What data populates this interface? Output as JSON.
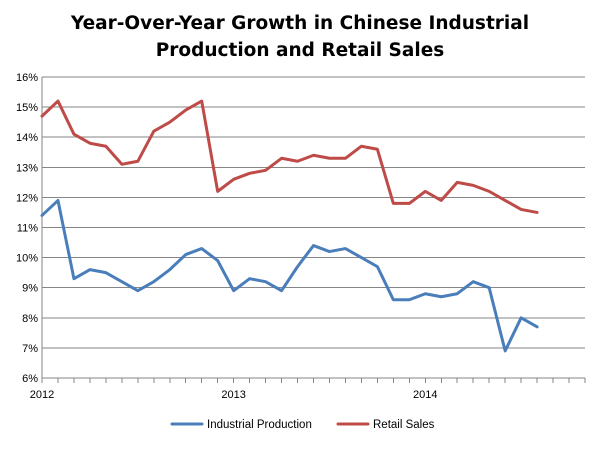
{
  "chart_data": {
    "type": "line",
    "title_lines": [
      "Year-Over-Year Growth in Chinese Industrial",
      "Production and Retail Sales"
    ],
    "xlabel": "",
    "ylabel": "",
    "y_tick_labels": [
      "6%",
      "7%",
      "8%",
      "9%",
      "10%",
      "11%",
      "12%",
      "13%",
      "14%",
      "15%",
      "16%"
    ],
    "ylim": [
      6,
      16
    ],
    "x_tick_labels": [
      {
        "label": "2012",
        "index": 0
      },
      {
        "label": "2013",
        "index": 12
      },
      {
        "label": "2014",
        "index": 24
      }
    ],
    "x_count": 35,
    "grid": "horizontal",
    "legend_position": "bottom",
    "series": [
      {
        "name": "Industrial Production",
        "color": "#4a7ebb",
        "values": [
          11.4,
          11.9,
          9.3,
          9.6,
          9.5,
          9.2,
          8.9,
          9.2,
          9.6,
          10.1,
          10.3,
          9.9,
          8.9,
          9.3,
          9.2,
          8.9,
          9.7,
          10.4,
          10.2,
          10.3,
          10.0,
          9.7,
          8.6,
          8.6,
          8.8,
          8.7,
          8.8,
          9.2,
          9.0,
          6.9,
          8.0,
          7.7
        ]
      },
      {
        "name": "Retail Sales",
        "color": "#be4b48",
        "values": [
          14.7,
          15.2,
          14.1,
          13.8,
          13.7,
          13.1,
          13.2,
          14.2,
          14.5,
          14.9,
          15.2,
          12.2,
          12.6,
          12.8,
          12.9,
          13.3,
          13.2,
          13.4,
          13.3,
          13.3,
          13.7,
          13.6,
          11.8,
          11.8,
          12.2,
          11.9,
          12.5,
          12.4,
          12.2,
          11.9,
          11.6,
          11.5
        ]
      }
    ]
  }
}
